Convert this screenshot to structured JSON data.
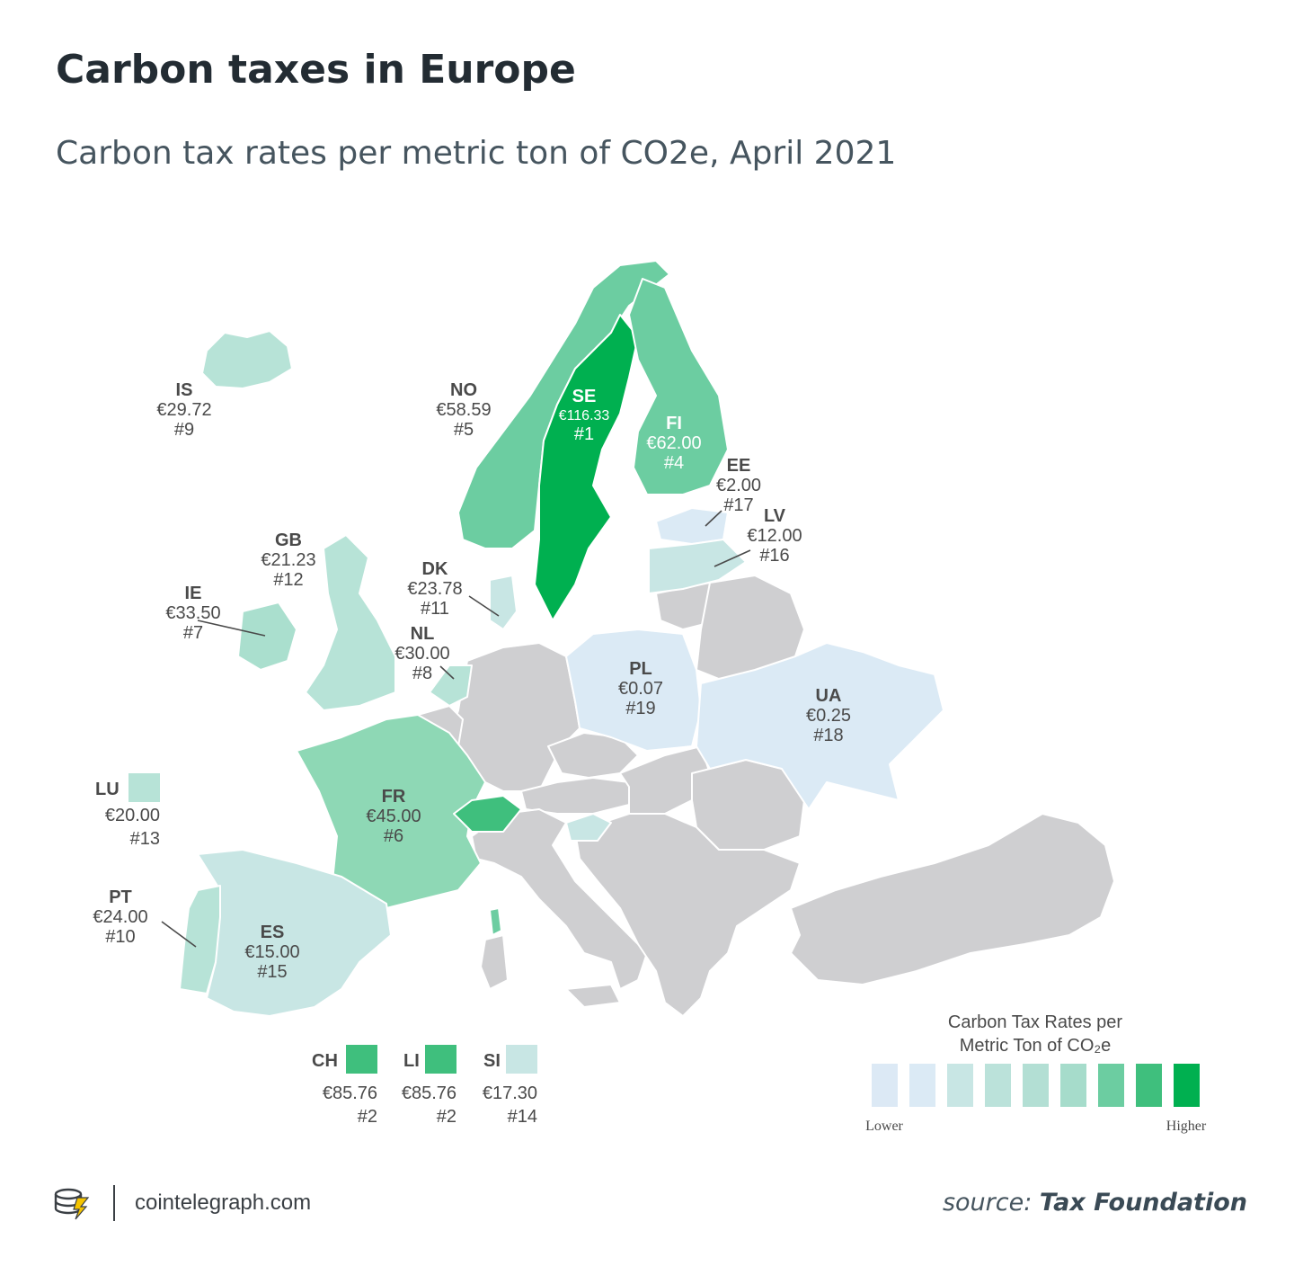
{
  "title": "Carbon taxes in Europe",
  "subtitle": "Carbon tax rates per metric ton of CO2e, April 2021",
  "colors": {
    "gray": "#cfcfd1",
    "scale": [
      "#dce9f5",
      "#dbeaf5",
      "#c8e6e4",
      "#bbe2da",
      "#b3dfd4",
      "#a6dccb",
      "#6ccda1",
      "#3fbf7d",
      "#00b050"
    ]
  },
  "countries": [
    {
      "code": "SE",
      "rate": "€116.33",
      "rank": "#1"
    },
    {
      "code": "CH",
      "rate": "€85.76",
      "rank": "#2"
    },
    {
      "code": "LI",
      "rate": "€85.76",
      "rank": "#2"
    },
    {
      "code": "FI",
      "rate": "€62.00",
      "rank": "#4"
    },
    {
      "code": "NO",
      "rate": "€58.59",
      "rank": "#5"
    },
    {
      "code": "FR",
      "rate": "€45.00",
      "rank": "#6"
    },
    {
      "code": "IE",
      "rate": "€33.50",
      "rank": "#7"
    },
    {
      "code": "NL",
      "rate": "€30.00",
      "rank": "#8"
    },
    {
      "code": "IS",
      "rate": "€29.72",
      "rank": "#9"
    },
    {
      "code": "PT",
      "rate": "€24.00",
      "rank": "#10"
    },
    {
      "code": "DK",
      "rate": "€23.78",
      "rank": "#11"
    },
    {
      "code": "GB",
      "rate": "€21.23",
      "rank": "#12"
    },
    {
      "code": "LU",
      "rate": "€20.00",
      "rank": "#13"
    },
    {
      "code": "SI",
      "rate": "€17.30",
      "rank": "#14"
    },
    {
      "code": "ES",
      "rate": "€15.00",
      "rank": "#15"
    },
    {
      "code": "LV",
      "rate": "€12.00",
      "rank": "#16"
    },
    {
      "code": "EE",
      "rate": "€2.00",
      "rank": "#17"
    },
    {
      "code": "UA",
      "rate": "€0.25",
      "rank": "#18"
    },
    {
      "code": "PL",
      "rate": "€0.07",
      "rank": "#19"
    }
  ],
  "legend": {
    "title_line1": "Carbon Tax Rates per",
    "title_line2": "Metric Ton of CO₂e",
    "low": "Lower",
    "high": "Higher"
  },
  "footer": {
    "site": "cointelegraph.com",
    "source_prefix": "source:",
    "source_name": "Tax Foundation"
  }
}
